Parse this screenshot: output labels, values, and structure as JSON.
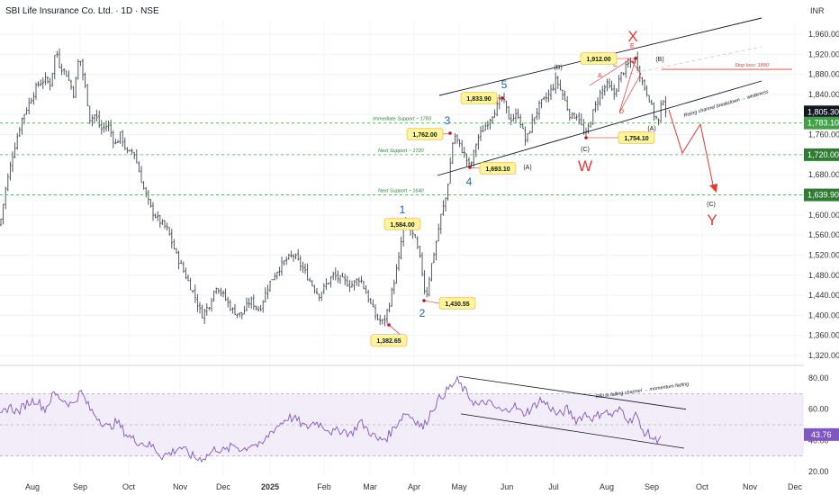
{
  "header": {
    "title": "SBI Life Insurance Co. Ltd. · 1D · NSE",
    "currency": "INR"
  },
  "price_axis": {
    "ticks": [
      "1,960.00",
      "1,920.00",
      "1,880.00",
      "1,840.00",
      "1,800.00",
      "1,760.00",
      "1,720.00",
      "1,680.00",
      "1,640.00",
      "1,600.00",
      "1,560.00",
      "1,520.00",
      "1,480.00",
      "1,440.00",
      "1,400.00",
      "1,360.00",
      "1,320.00"
    ],
    "tags": [
      {
        "label": "1,805.30",
        "value": 1805.3,
        "color": "#131722"
      },
      {
        "label": "1,783.10",
        "value": 1783.1,
        "color": "#43a047"
      },
      {
        "label": "1,720.00",
        "value": 1720,
        "color": "#2e7d32"
      },
      {
        "label": "1,639.90",
        "value": 1639.9,
        "color": "#2e7d32"
      }
    ]
  },
  "rsi_axis": {
    "ticks": [
      "80.00",
      "60.00",
      "40.00",
      "20.00"
    ],
    "tag": {
      "label": "43.76",
      "value": 43.76
    }
  },
  "time_axis": {
    "labels": [
      "Aug",
      "Sep",
      "Oct",
      "Nov",
      "Dec",
      "2025",
      "Feb",
      "Mar",
      "Apr",
      "May",
      "Jun",
      "Jul",
      "Aug",
      "Sep",
      "Oct",
      "Nov",
      "Dec"
    ]
  },
  "annotations": {
    "boxes": [
      {
        "text": "1,584.00",
        "value": 1584
      },
      {
        "text": "1,430.55",
        "value": 1430.55
      },
      {
        "text": "1,382.65",
        "value": 1382.65
      },
      {
        "text": "1,762.00",
        "value": 1762
      },
      {
        "text": "1,693.10",
        "value": 1693.1
      },
      {
        "text": "1,833.90",
        "value": 1833.9
      },
      {
        "text": "1,912.00",
        "value": 1912
      },
      {
        "text": "1,754.10",
        "value": 1754.1
      }
    ],
    "waves_blue": [
      "1",
      "2",
      "3",
      "4",
      "5"
    ],
    "waves_black": [
      "(A)",
      "(B)",
      "(C)",
      "(A)",
      "(B)",
      "(C)"
    ],
    "waves_red_big": [
      "W",
      "X",
      "Y"
    ],
    "abcde": [
      "A",
      "C",
      "D",
      "E"
    ],
    "support_labels": [
      "Immediate Support ~ 1783",
      "Next Support ~ 1720",
      "Next Support ~ 1640"
    ],
    "stop_loss": "Stop loss: 1890",
    "channel_note": "Rising channel breakdown → weakness",
    "rsi_note": "RSI in falling channel → momentum fading"
  },
  "chart_data": {
    "type": "bar",
    "subtype": "ohlc-daily-with-rsi",
    "symbol": "SBI Life Insurance Co. Ltd.",
    "interval": "1D",
    "exchange": "NSE",
    "price_range": [
      1300,
      1990
    ],
    "rsi_range": [
      14,
      88
    ],
    "last_price": 1805.3,
    "key_levels": [
      1783.1,
      1720,
      1639.9
    ],
    "stop_loss": 1890,
    "price_path": [
      [
        0,
        1580
      ],
      [
        6,
        1650
      ],
      [
        14,
        1720
      ],
      [
        24,
        1790
      ],
      [
        34,
        1830
      ],
      [
        42,
        1860
      ],
      [
        50,
        1870
      ],
      [
        56,
        1860
      ],
      [
        62,
        1930
      ],
      [
        66,
        1900
      ],
      [
        74,
        1880
      ],
      [
        82,
        1840
      ],
      [
        88,
        1920
      ],
      [
        95,
        1850
      ],
      [
        100,
        1790
      ],
      [
        106,
        1800
      ],
      [
        112,
        1770
      ],
      [
        120,
        1780
      ],
      [
        128,
        1740
      ],
      [
        134,
        1760
      ],
      [
        142,
        1720
      ],
      [
        148,
        1730
      ],
      [
        154,
        1690
      ],
      [
        160,
        1650
      ],
      [
        168,
        1610
      ],
      [
        176,
        1590
      ],
      [
        186,
        1570
      ],
      [
        196,
        1520
      ],
      [
        206,
        1480
      ],
      [
        216,
        1440
      ],
      [
        224,
        1400
      ],
      [
        232,
        1420
      ],
      [
        240,
        1460
      ],
      [
        248,
        1440
      ],
      [
        258,
        1410
      ],
      [
        268,
        1400
      ],
      [
        278,
        1430
      ],
      [
        288,
        1410
      ],
      [
        298,
        1460
      ],
      [
        308,
        1490
      ],
      [
        318,
        1510
      ],
      [
        326,
        1520
      ],
      [
        334,
        1500
      ],
      [
        344,
        1470
      ],
      [
        354,
        1440
      ],
      [
        362,
        1460
      ],
      [
        370,
        1480
      ],
      [
        380,
        1470
      ],
      [
        390,
        1460
      ],
      [
        400,
        1475
      ],
      [
        410,
        1430
      ],
      [
        418,
        1395
      ],
      [
        426,
        1385
      ],
      [
        432,
        1420
      ],
      [
        438,
        1470
      ],
      [
        444,
        1520
      ],
      [
        448,
        1584
      ],
      [
        456,
        1570
      ],
      [
        462,
        1545
      ],
      [
        468,
        1500
      ],
      [
        473,
        1432
      ],
      [
        478,
        1490
      ],
      [
        484,
        1540
      ],
      [
        490,
        1600
      ],
      [
        496,
        1640
      ],
      [
        500,
        1700
      ],
      [
        504,
        1762
      ],
      [
        510,
        1740
      ],
      [
        516,
        1720
      ],
      [
        522,
        1693
      ],
      [
        530,
        1750
      ],
      [
        540,
        1780
      ],
      [
        550,
        1810
      ],
      [
        558,
        1834
      ],
      [
        566,
        1790
      ],
      [
        576,
        1800
      ],
      [
        584,
        1745
      ],
      [
        592,
        1790
      ],
      [
        600,
        1820
      ],
      [
        610,
        1840
      ],
      [
        618,
        1870
      ],
      [
        626,
        1835
      ],
      [
        634,
        1795
      ],
      [
        642,
        1800
      ],
      [
        650,
        1754
      ],
      [
        658,
        1800
      ],
      [
        666,
        1840
      ],
      [
        674,
        1860
      ],
      [
        682,
        1840
      ],
      [
        690,
        1880
      ],
      [
        698,
        1900
      ],
      [
        706,
        1912
      ],
      [
        714,
        1860
      ],
      [
        720,
        1840
      ],
      [
        726,
        1800
      ],
      [
        732,
        1785
      ],
      [
        736,
        1840
      ],
      [
        740,
        1805
      ]
    ],
    "rsi_path": [
      [
        0,
        55
      ],
      [
        10,
        62
      ],
      [
        20,
        58
      ],
      [
        30,
        64
      ],
      [
        40,
        66
      ],
      [
        50,
        60
      ],
      [
        60,
        70
      ],
      [
        70,
        66
      ],
      [
        80,
        63
      ],
      [
        90,
        71
      ],
      [
        100,
        60
      ],
      [
        110,
        54
      ],
      [
        120,
        48
      ],
      [
        130,
        52
      ],
      [
        140,
        44
      ],
      [
        150,
        40
      ],
      [
        160,
        38
      ],
      [
        170,
        36
      ],
      [
        180,
        30
      ],
      [
        190,
        32
      ],
      [
        200,
        36
      ],
      [
        210,
        31
      ],
      [
        220,
        28
      ],
      [
        230,
        30
      ],
      [
        240,
        35
      ],
      [
        250,
        33
      ],
      [
        260,
        37
      ],
      [
        270,
        34
      ],
      [
        280,
        38
      ],
      [
        290,
        36
      ],
      [
        300,
        45
      ],
      [
        310,
        50
      ],
      [
        320,
        55
      ],
      [
        330,
        53
      ],
      [
        340,
        48
      ],
      [
        350,
        52
      ],
      [
        360,
        49
      ],
      [
        370,
        45
      ],
      [
        380,
        47
      ],
      [
        390,
        44
      ],
      [
        400,
        52
      ],
      [
        410,
        46
      ],
      [
        420,
        40
      ],
      [
        430,
        42
      ],
      [
        440,
        50
      ],
      [
        450,
        58
      ],
      [
        460,
        54
      ],
      [
        470,
        48
      ],
      [
        480,
        60
      ],
      [
        490,
        68
      ],
      [
        500,
        74
      ],
      [
        508,
        78
      ],
      [
        516,
        72
      ],
      [
        524,
        66
      ],
      [
        532,
        62
      ],
      [
        540,
        65
      ],
      [
        550,
        61
      ],
      [
        560,
        58
      ],
      [
        570,
        63
      ],
      [
        580,
        57
      ],
      [
        590,
        60
      ],
      [
        600,
        66
      ],
      [
        610,
        62
      ],
      [
        620,
        56
      ],
      [
        630,
        60
      ],
      [
        640,
        53
      ],
      [
        650,
        57
      ],
      [
        660,
        54
      ],
      [
        670,
        59
      ],
      [
        680,
        56
      ],
      [
        690,
        60
      ],
      [
        700,
        52
      ],
      [
        706,
        58
      ],
      [
        712,
        47
      ],
      [
        720,
        44
      ],
      [
        728,
        40
      ],
      [
        735,
        43.76
      ]
    ]
  }
}
